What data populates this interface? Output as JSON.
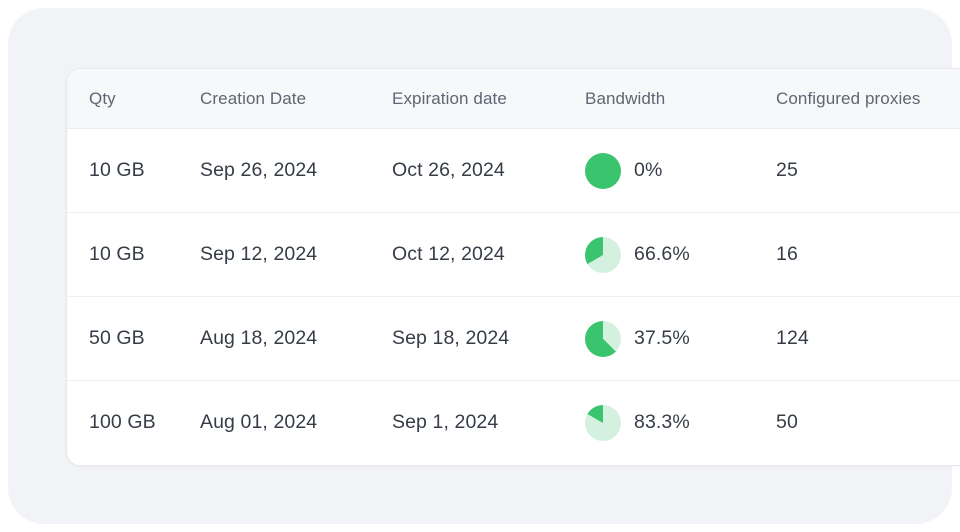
{
  "colors": {
    "pie_percent_light": "#D4F0DF",
    "pie_remainder_green": "#3AC46E",
    "panel_background": "#F2F3F6",
    "header_background": "#F7F8FA"
  },
  "table": {
    "columns": [
      {
        "key": "qty",
        "label": "Qty"
      },
      {
        "key": "creation",
        "label": "Creation Date"
      },
      {
        "key": "expiration",
        "label": "Expiration date"
      },
      {
        "key": "bandwidth",
        "label": "Bandwidth"
      },
      {
        "key": "proxies",
        "label": "Configured proxies"
      }
    ],
    "rows": [
      {
        "qty": "10 GB",
        "creation": "Sep 26, 2024",
        "expiration": "Oct 26, 2024",
        "bandwidth_pct": "0%",
        "bandwidth_value": 0,
        "proxies": "25"
      },
      {
        "qty": "10 GB",
        "creation": "Sep 12, 2024",
        "expiration": "Oct 12, 2024",
        "bandwidth_pct": "66.6%",
        "bandwidth_value": 66.6,
        "proxies": "16"
      },
      {
        "qty": "50 GB",
        "creation": "Aug 18, 2024",
        "expiration": "Sep 18, 2024",
        "bandwidth_pct": "37.5%",
        "bandwidth_value": 37.5,
        "proxies": "124"
      },
      {
        "qty": "100 GB",
        "creation": "Aug 01, 2024",
        "expiration": "Sep 1, 2024",
        "bandwidth_pct": "83.3%",
        "bandwidth_value": 83.3,
        "proxies": "50"
      }
    ]
  }
}
